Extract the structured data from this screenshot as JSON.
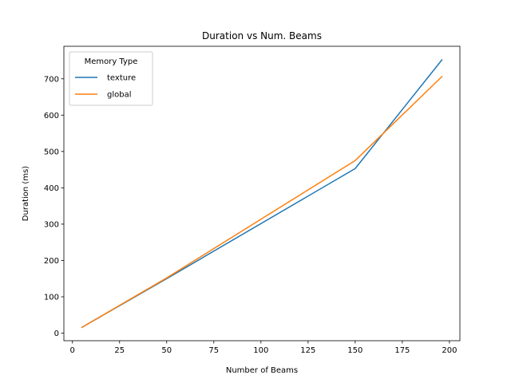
{
  "chart_data": {
    "type": "line",
    "title": "Duration vs Num. Beams",
    "xlabel": "Number of Beams",
    "ylabel": "Duration (ms)",
    "xlim": [
      -4.55,
      205.55
    ],
    "ylim": [
      -20.8,
      789.5
    ],
    "xticks": [
      0,
      25,
      50,
      75,
      100,
      125,
      150,
      175,
      200
    ],
    "yticks": [
      0,
      100,
      200,
      300,
      400,
      500,
      600,
      700
    ],
    "grid": false,
    "legend": {
      "title": "Memory Type",
      "placement": "upper-left"
    },
    "series": [
      {
        "name": "texture",
        "color": "#1f77b4",
        "x": [
          5,
          50,
          150,
          196
        ],
        "y": [
          16,
          150,
          453,
          752
        ]
      },
      {
        "name": "global",
        "color": "#ff7f0e",
        "x": [
          5,
          50,
          150,
          196
        ],
        "y": [
          16,
          152,
          475,
          706
        ]
      }
    ]
  }
}
